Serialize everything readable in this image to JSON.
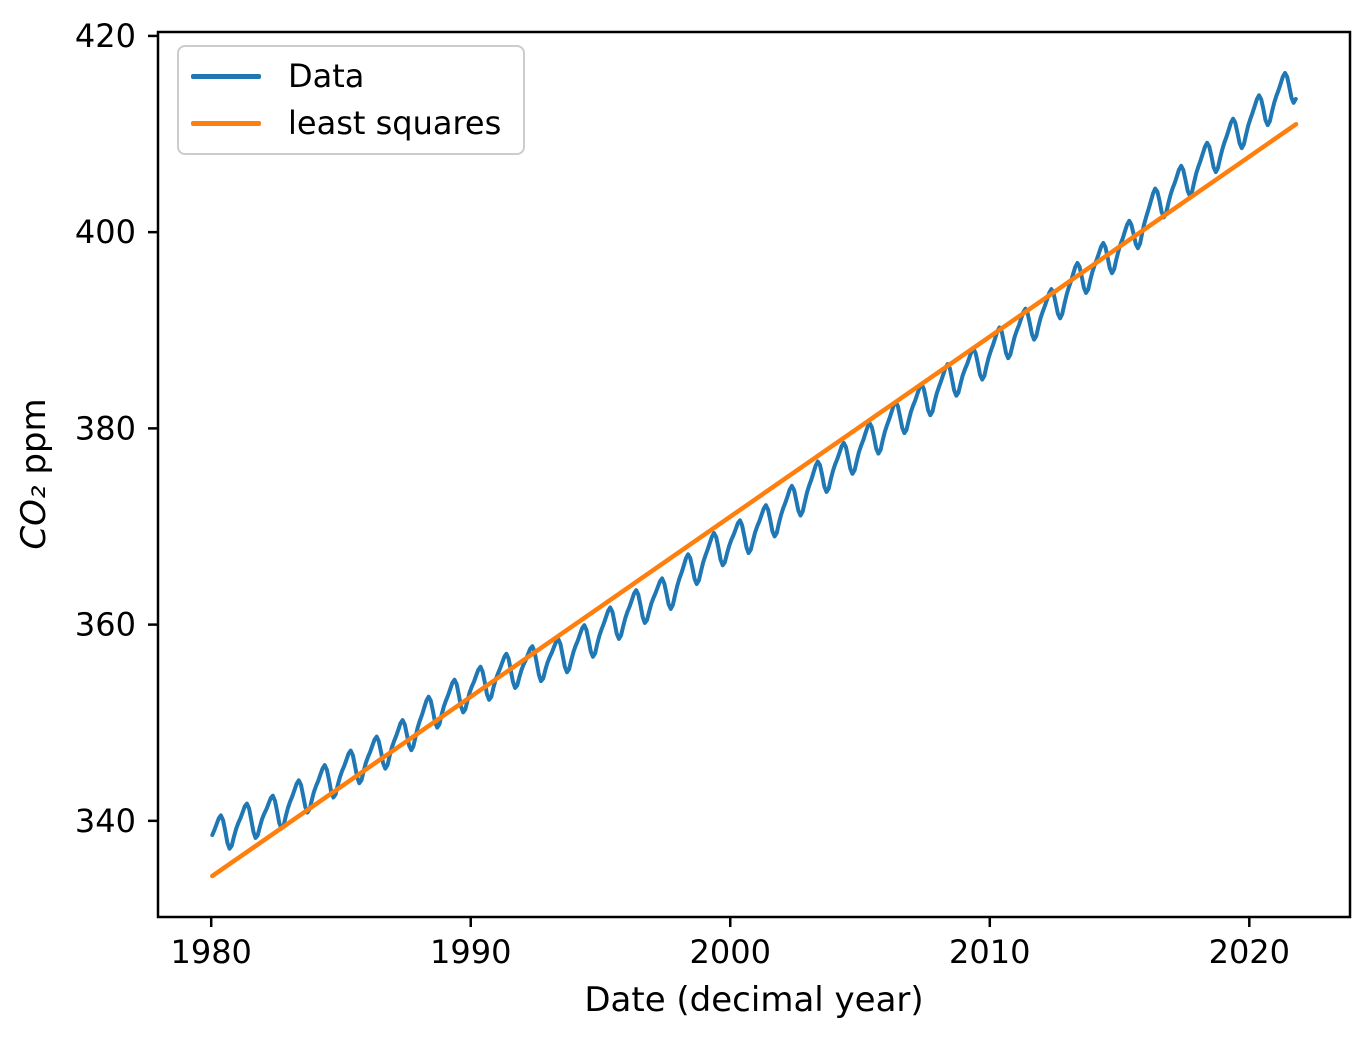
{
  "figure": {
    "background": "#ffffff",
    "text_color": "#000000",
    "spine_color": "#000000",
    "legend_border_color": "#cccccc"
  },
  "chart_data": {
    "type": "line",
    "title": "",
    "xlabel": "Date (decimal year)",
    "ylabel_math": "CO₂",
    "ylabel_rest": " ppm",
    "xlim": [
      1977.95,
      2023.88
    ],
    "ylim": [
      330.2,
      420.4
    ],
    "x_ticks": [
      1980,
      1990,
      2000,
      2010,
      2020
    ],
    "y_ticks": [
      340,
      360,
      380,
      400,
      420
    ],
    "grid": false,
    "legend_position": "upper-left",
    "series": [
      {
        "name": "Data",
        "color": "#1f77b4",
        "line_width": 4,
        "kind": "monthly_co2",
        "x_start": 1980.042,
        "x_end": 2021.8,
        "start_year": 1980,
        "annual_means": [
          338.91,
          340.11,
          340.86,
          342.53,
          344.07,
          345.54,
          346.97,
          348.68,
          351.16,
          352.79,
          354.06,
          355.39,
          356.09,
          356.83,
          358.33,
          360.18,
          361.93,
          363.05,
          365.7,
          367.8,
          368.97,
          370.57,
          372.59,
          375.15,
          376.95,
          378.98,
          381.15,
          382.9,
          385.02,
          386.5,
          388.76,
          390.63,
          392.65,
          395.4,
          397.34,
          399.65,
          403.07,
          405.22,
          407.61,
          410.07,
          412.44,
          414.71
        ],
        "seasonal_monthly_offsets": [
          0.2,
          0.6,
          1.1,
          1.6,
          1.8,
          1.2,
          0.0,
          -1.3,
          -2.0,
          -1.8,
          -1.0,
          -0.3
        ]
      },
      {
        "name": "least squares",
        "color": "#ff7f0e",
        "line_width": 4,
        "kind": "linear_fit",
        "x_range": [
          1980.042,
          2021.8
        ],
        "value_at_1980": 334.3,
        "slope_ppm_per_year": 1.835
      }
    ]
  }
}
